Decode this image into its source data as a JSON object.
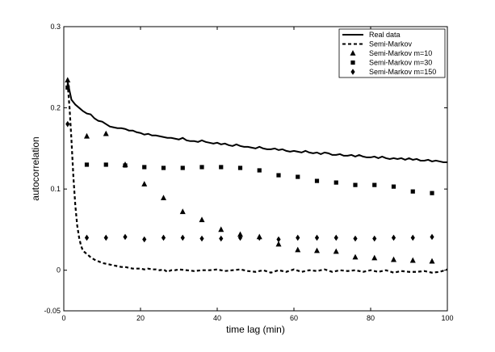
{
  "chart_data": {
    "type": "line",
    "xlabel": "time lag (min)",
    "ylabel": "autocorrelation",
    "xlim": [
      0,
      100
    ],
    "ylim": [
      -0.05,
      0.3
    ],
    "xticks": [
      0,
      20,
      40,
      60,
      80,
      100
    ],
    "yticks": [
      -0.05,
      0,
      0.1,
      0.2,
      0.3
    ],
    "ytick_labels": [
      "-0.05",
      "0",
      "0.1",
      "0.2",
      "0.3"
    ],
    "xtick_labels": [
      "0",
      "20",
      "40",
      "60",
      "80",
      "100"
    ],
    "grid": false,
    "legend_position": "top-right",
    "series": [
      {
        "name": "Real data",
        "style": "solid-line",
        "x": [
          1,
          2,
          3,
          4,
          5,
          6,
          7,
          8,
          9,
          10,
          11,
          12,
          13,
          14,
          15,
          16,
          17,
          18,
          19,
          20,
          21,
          22,
          23,
          24,
          25,
          26,
          27,
          28,
          29,
          30,
          31,
          32,
          33,
          34,
          35,
          36,
          37,
          38,
          39,
          40,
          41,
          42,
          43,
          44,
          45,
          46,
          47,
          48,
          49,
          50,
          51,
          52,
          53,
          54,
          55,
          56,
          57,
          58,
          59,
          60,
          61,
          62,
          63,
          64,
          65,
          66,
          67,
          68,
          69,
          70,
          71,
          72,
          73,
          74,
          75,
          76,
          77,
          78,
          79,
          80,
          81,
          82,
          83,
          84,
          85,
          86,
          87,
          88,
          89,
          90,
          91,
          92,
          93,
          94,
          95,
          96,
          97,
          98,
          99,
          100
        ],
        "y": [
          0.232,
          0.21,
          0.204,
          0.2,
          0.196,
          0.193,
          0.192,
          0.187,
          0.184,
          0.183,
          0.18,
          0.177,
          0.176,
          0.175,
          0.175,
          0.174,
          0.172,
          0.172,
          0.17,
          0.169,
          0.167,
          0.168,
          0.166,
          0.166,
          0.165,
          0.164,
          0.163,
          0.163,
          0.162,
          0.161,
          0.163,
          0.16,
          0.159,
          0.159,
          0.158,
          0.16,
          0.158,
          0.157,
          0.156,
          0.157,
          0.155,
          0.156,
          0.154,
          0.153,
          0.155,
          0.153,
          0.152,
          0.152,
          0.151,
          0.15,
          0.152,
          0.15,
          0.149,
          0.149,
          0.15,
          0.148,
          0.149,
          0.147,
          0.146,
          0.147,
          0.146,
          0.145,
          0.147,
          0.145,
          0.144,
          0.145,
          0.143,
          0.145,
          0.144,
          0.142,
          0.142,
          0.143,
          0.141,
          0.141,
          0.142,
          0.14,
          0.142,
          0.14,
          0.139,
          0.139,
          0.14,
          0.138,
          0.14,
          0.138,
          0.137,
          0.138,
          0.137,
          0.138,
          0.136,
          0.138,
          0.136,
          0.137,
          0.135,
          0.135,
          0.136,
          0.134,
          0.135,
          0.134,
          0.133,
          0.133
        ]
      },
      {
        "name": "Semi-Markov",
        "style": "dashed-line",
        "x": [
          1,
          1.5,
          2,
          2.5,
          3,
          3.5,
          4,
          4.5,
          5,
          6,
          7,
          8,
          9,
          10,
          11,
          12,
          13,
          14,
          15,
          16,
          17,
          18,
          19,
          20,
          21,
          22,
          23,
          24,
          25,
          26,
          27,
          28,
          29,
          30,
          32,
          34,
          36,
          38,
          40,
          42,
          44,
          46,
          48,
          50,
          52,
          54,
          56,
          58,
          60,
          62,
          64,
          66,
          68,
          70,
          72,
          74,
          76,
          78,
          80,
          82,
          84,
          86,
          88,
          90,
          92,
          94,
          96,
          98,
          100
        ],
        "y": [
          0.23,
          0.2,
          0.16,
          0.115,
          0.08,
          0.055,
          0.04,
          0.03,
          0.024,
          0.02,
          0.016,
          0.013,
          0.011,
          0.009,
          0.008,
          0.007,
          0.006,
          0.005,
          0.004,
          0.004,
          0.003,
          0.002,
          0.002,
          0.002,
          0.001,
          0.002,
          0.001,
          0.001,
          0.0,
          0.001,
          -0.002,
          0.0,
          0.0,
          0.001,
          0.0,
          -0.001,
          0.0,
          0.0,
          0.001,
          -0.001,
          0.0,
          0.001,
          -0.001,
          -0.002,
          0.0,
          -0.003,
          0.0,
          -0.002,
          0.001,
          -0.002,
          0.0,
          -0.001,
          0.001,
          -0.002,
          0.0,
          -0.001,
          0.0,
          -0.002,
          0.0,
          -0.002,
          0.0,
          -0.003,
          -0.001,
          -0.002,
          -0.002,
          -0.001,
          -0.003,
          -0.002,
          0.001
        ]
      },
      {
        "name": "Semi-Markov m=10",
        "style": "triangle",
        "x": [
          1,
          6,
          11,
          16,
          21,
          26,
          31,
          36,
          41,
          46,
          51,
          56,
          61,
          66,
          71,
          76,
          81,
          86,
          91,
          96
        ],
        "y": [
          0.234,
          0.165,
          0.168,
          0.13,
          0.106,
          0.089,
          0.072,
          0.062,
          0.05,
          0.044,
          0.041,
          0.032,
          0.025,
          0.024,
          0.023,
          0.016,
          0.015,
          0.013,
          0.012,
          0.011
        ]
      },
      {
        "name": "Semi-Markov m=30",
        "style": "square",
        "x": [
          1,
          6,
          11,
          16,
          21,
          26,
          31,
          36,
          41,
          46,
          51,
          56,
          61,
          66,
          71,
          76,
          81,
          86,
          91,
          96
        ],
        "y": [
          0.225,
          0.13,
          0.13,
          0.129,
          0.127,
          0.126,
          0.126,
          0.127,
          0.127,
          0.126,
          0.123,
          0.117,
          0.115,
          0.11,
          0.108,
          0.105,
          0.105,
          0.103,
          0.097,
          0.095
        ]
      },
      {
        "name": "Semi-Markov m=150",
        "style": "diamond",
        "x": [
          1,
          6,
          11,
          16,
          21,
          26,
          31,
          36,
          41,
          46,
          51,
          56,
          61,
          66,
          71,
          76,
          81,
          86,
          91,
          96
        ],
        "y": [
          0.18,
          0.04,
          0.04,
          0.041,
          0.038,
          0.04,
          0.04,
          0.039,
          0.039,
          0.04,
          0.04,
          0.038,
          0.04,
          0.04,
          0.04,
          0.039,
          0.039,
          0.04,
          0.04,
          0.041
        ]
      }
    ]
  }
}
